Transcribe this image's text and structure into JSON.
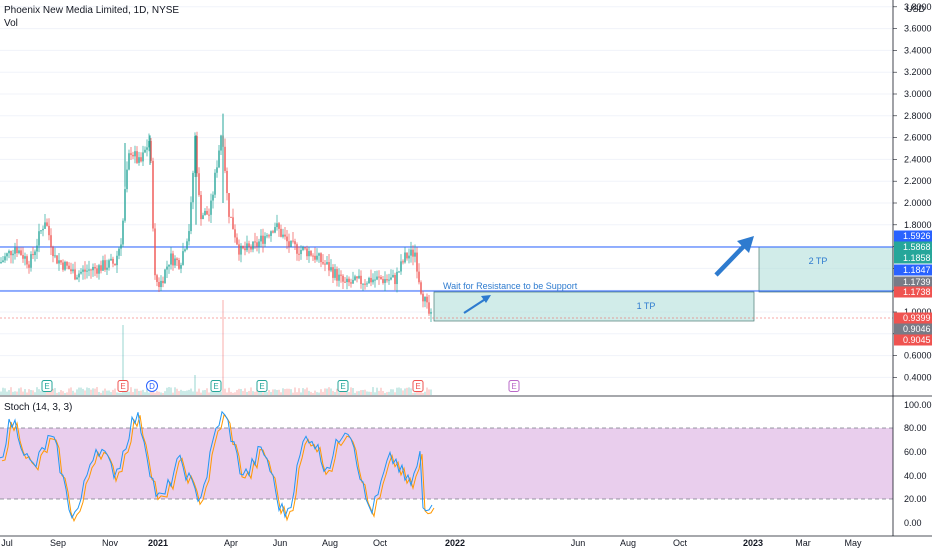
{
  "header": {
    "symbol_line": "Phoenix New Media Limited, 1D, NYSE",
    "volume_label": "Vol",
    "currency": "USD",
    "stoch_label": "Stoch (14, 3, 3)"
  },
  "colors": {
    "up": "#26a69a",
    "down": "#ef5350",
    "line": "#2962ff",
    "zone": "#b2dfdb",
    "stoch_bg": "#e1bee7",
    "k_line": "#2196f3",
    "d_line": "#ff9800",
    "arrow": "#2e7bcf"
  },
  "chart_data": [
    {
      "type": "candlestick",
      "title": "Phoenix New Media Limited, 1D, NYSE",
      "y_axis": {
        "ticks": [
          "3.8000",
          "3.6000",
          "3.4000",
          "3.2000",
          "3.0000",
          "2.8000",
          "2.6000",
          "2.4000",
          "2.2000",
          "2.0000",
          "1.8000",
          "1.6000",
          "1.4000",
          "1.2000",
          "1.0000",
          "0.8000",
          "0.6000",
          "0.4000"
        ],
        "ylim": [
          0.3,
          3.9
        ]
      },
      "x_axis": {
        "ticks": [
          "Jul",
          "Sep",
          "Nov",
          "2021",
          "Apr",
          "Jun",
          "Aug",
          "Oct",
          "2022",
          "Jun",
          "Aug",
          "Oct",
          "2023",
          "Mar",
          "May"
        ]
      },
      "horizontal_lines": [
        {
          "value": 1.5926,
          "label": "1.5926"
        },
        {
          "value": 1.1739,
          "label": "1.1739"
        }
      ],
      "price_tags": [
        {
          "label": "1.5926",
          "color": "#2962ff"
        },
        {
          "label": "1.5868",
          "color": "#26a69a"
        },
        {
          "label": "1.1858",
          "color": "#26a69a"
        },
        {
          "label": "1.1847",
          "color": "#2962ff"
        },
        {
          "label": "1.1739",
          "color": "#787b86"
        },
        {
          "label": "1.1738",
          "color": "#ef5350"
        },
        {
          "label": "0.9399",
          "color": "#ef5350"
        },
        {
          "label": "0.9046",
          "color": "#787b86"
        },
        {
          "label": "0.9045",
          "color": "#ef5350"
        }
      ],
      "zones": [
        {
          "label": "1 TP",
          "from": 1.1739,
          "to": 0.92
        },
        {
          "label": "2 TP",
          "from": 1.5926,
          "to": 1.1739
        }
      ],
      "annotations": [
        "Wait for Resistance to be Support"
      ],
      "events": [
        "E",
        "E",
        "D",
        "E",
        "E",
        "E",
        "E",
        "E"
      ]
    },
    {
      "type": "line",
      "title": "Stoch (14, 3, 3)",
      "y_axis": {
        "ticks": [
          "100.00",
          "80.00",
          "60.00",
          "40.00",
          "20.00",
          "0.00"
        ],
        "ylim": [
          0,
          100
        ]
      },
      "bands": [
        20,
        80
      ]
    }
  ]
}
